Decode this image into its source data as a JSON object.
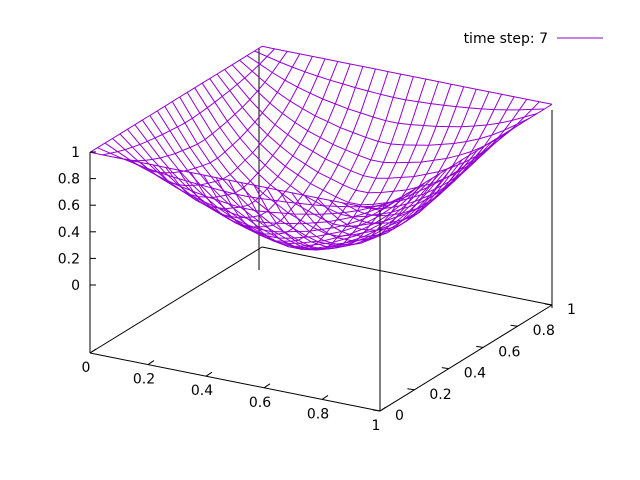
{
  "chart_data": {
    "type": "surface",
    "grid": true,
    "legend": {
      "label": "time step: 7",
      "placement": "top-right"
    },
    "x_range": [
      0,
      1
    ],
    "y_range": [
      0,
      1
    ],
    "z_range": [
      0,
      1
    ],
    "x_ticks": [
      "0",
      "0.2",
      "0.4",
      "0.6",
      "0.8",
      "1"
    ],
    "y_ticks": [
      "0",
      "0.2",
      "0.4",
      "0.6",
      "0.8",
      "1"
    ],
    "z_ticks": [
      "0",
      "0.2",
      "0.4",
      "0.6",
      "0.8",
      "1"
    ],
    "x_values": [
      0,
      0.0435,
      0.087,
      0.1304,
      0.1739,
      0.2174,
      0.2609,
      0.3043,
      0.3478,
      0.3913,
      0.4348,
      0.4783,
      0.5217,
      0.5652,
      0.6087,
      0.6522,
      0.6957,
      0.7391,
      0.7826,
      0.8261,
      0.8696,
      0.913,
      0.9565,
      1
    ],
    "y_values": [
      0,
      0.0435,
      0.087,
      0.1304,
      0.1739,
      0.2174,
      0.2609,
      0.3043,
      0.3478,
      0.3913,
      0.4348,
      0.4783,
      0.5217,
      0.5652,
      0.6087,
      0.6522,
      0.6957,
      0.7391,
      0.7826,
      0.8261,
      0.8696,
      0.913,
      0.9565,
      1
    ],
    "edge_profile": [
      1,
      0.85,
      0.7,
      0.57,
      0.46,
      0.37,
      0.29,
      0.23,
      0.17,
      0.13,
      0.09,
      0.06,
      0.06,
      0.09,
      0.13,
      0.17,
      0.23,
      0.29,
      0.37,
      0.46,
      0.57,
      0.7,
      0.85,
      1
    ],
    "z_rule": "z = 1 - (1 - edge_profile[i]) * (1 - edge_profile[j])",
    "series_color": "#9400d3"
  }
}
